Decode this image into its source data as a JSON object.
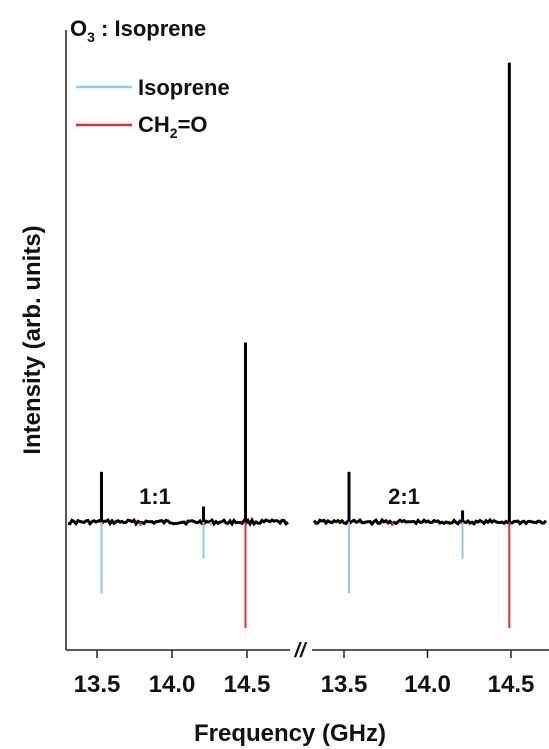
{
  "chart_data": {
    "type": "stick-spectrum",
    "title": "O",
    "title_subscript": "3",
    "title_rest": " : Isoprene",
    "xlabel": "Frequency (GHz)",
    "ylabel": "Intensity (arb. units)",
    "x_break_symbol": "//",
    "legend": {
      "placement": "top-left",
      "entries": [
        {
          "label": "Isoprene",
          "color": "#87ceeb"
        },
        {
          "label": "CH",
          "sub": "2",
          "suffix": "=O",
          "color": "#e03030"
        }
      ]
    },
    "panels": [
      {
        "label": "1:1",
        "xlim": [
          13.38,
          14.76
        ],
        "xticks": [
          13.5,
          14.0,
          14.5
        ],
        "xtick_labels": [
          "13.5",
          "14.0",
          "14.5"
        ],
        "observed": [
          {
            "x": 13.53,
            "y": 0.26
          },
          {
            "x": 14.21,
            "y": 0.08
          },
          {
            "x": 14.49,
            "y": 0.93
          }
        ],
        "isoprene": [
          {
            "x": 13.53,
            "y": -0.37
          },
          {
            "x": 14.21,
            "y": -0.19
          },
          {
            "x": 14.26,
            "y": -0.02
          }
        ],
        "ch2o": [
          {
            "x": 13.79,
            "y": -0.02
          },
          {
            "x": 14.49,
            "y": -0.55
          }
        ]
      },
      {
        "label": "2:1",
        "xlim": [
          13.38,
          14.76
        ],
        "xticks": [
          13.5,
          14.0,
          14.5
        ],
        "xtick_labels": [
          "13.5",
          "14.0",
          "14.5"
        ],
        "observed": [
          {
            "x": 13.53,
            "y": 0.26
          },
          {
            "x": 14.21,
            "y": 0.06
          },
          {
            "x": 14.49,
            "y": 2.38
          }
        ],
        "isoprene": [
          {
            "x": 13.53,
            "y": -0.37
          },
          {
            "x": 14.21,
            "y": -0.19
          }
        ],
        "ch2o": [
          {
            "x": 13.79,
            "y": -0.02
          },
          {
            "x": 14.49,
            "y": -0.55
          }
        ]
      }
    ],
    "ylim": [
      -0.7,
      2.6
    ],
    "grid": false,
    "colors": {
      "observed": "#000000",
      "isoprene": "#87ceeb",
      "ch2o": "#e03030",
      "axis": "#222222"
    }
  }
}
